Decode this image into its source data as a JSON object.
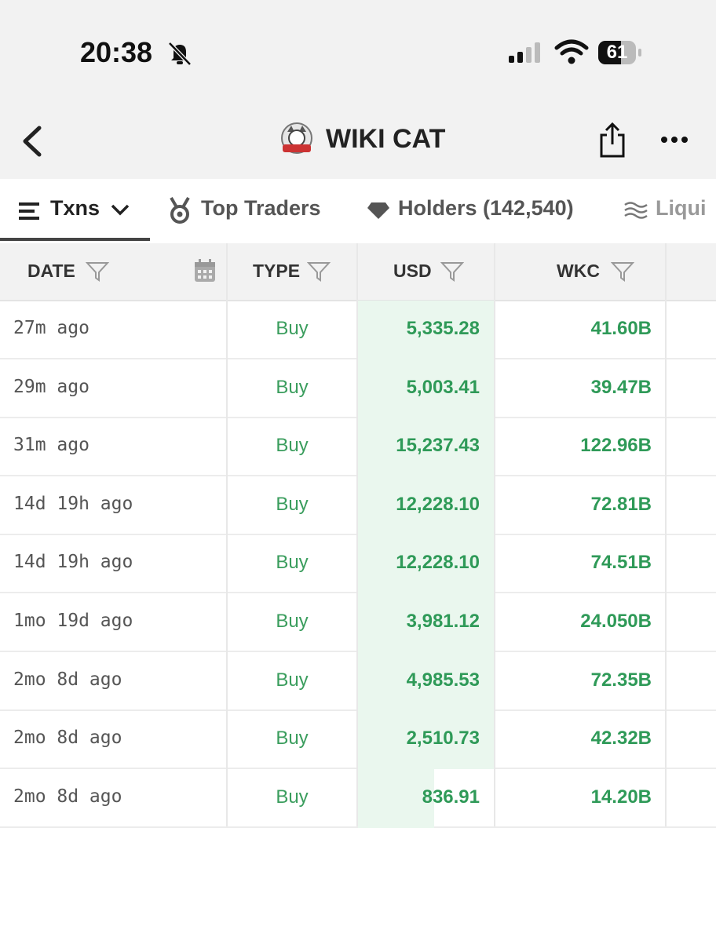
{
  "status_bar": {
    "time": "20:38",
    "battery": "61"
  },
  "header": {
    "title": "WIKI CAT"
  },
  "tabs": [
    "Txns",
    "Top Traders",
    "Holders (142,540)",
    "Liqui"
  ],
  "table": {
    "columns": [
      "DATE",
      "TYPE",
      "USD",
      "WKC"
    ],
    "rows": [
      [
        "27m ago",
        "Buy",
        "5,335.28",
        "41.60B"
      ],
      [
        "29m ago",
        "Buy",
        "5,003.41",
        "39.47B"
      ],
      [
        "31m ago",
        "Buy",
        "15,237.43",
        "122.96B"
      ],
      [
        "14d 19h ago",
        "Buy",
        "12,228.10",
        "72.81B"
      ],
      [
        "14d 19h ago",
        "Buy",
        "12,228.10",
        "74.51B"
      ],
      [
        "1mo 19d ago",
        "Buy",
        "3,981.12",
        "24.050B"
      ],
      [
        "2mo 8d ago",
        "Buy",
        "4,985.53",
        "72.35B"
      ],
      [
        "2mo 8d ago",
        "Buy",
        "2,510.73",
        "42.32B"
      ],
      [
        "2mo 8d ago",
        "Buy",
        "836.91",
        "14.20B"
      ]
    ]
  }
}
